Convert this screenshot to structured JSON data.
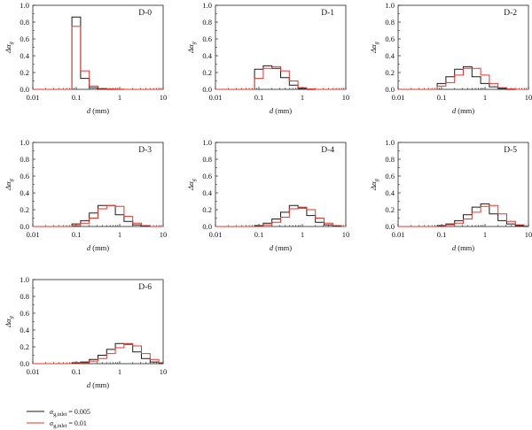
{
  "figure": {
    "xlabel_var": "d",
    "xlabel_unit": " (mm)",
    "ylabel_main": "Δα",
    "ylabel_sub": "g"
  },
  "legend": [
    {
      "symbol": "α",
      "sub": "g,inlet",
      "value": " = 0.005",
      "color": "#1a1a1a"
    },
    {
      "symbol": "α",
      "sub": "g,inlet",
      "value": " = 0.01",
      "color": "#e8352a"
    }
  ],
  "chart_data": [
    {
      "type": "line",
      "title": "D-0",
      "x_scale": "log",
      "xlim": [
        0.01,
        10
      ],
      "ylim": [
        0,
        1.0
      ],
      "x_ticks": [
        "0.01",
        "0.1",
        "1",
        "10"
      ],
      "y_ticks": [
        "0.0",
        "0.2",
        "0.4",
        "0.6",
        "0.8",
        "1.0"
      ],
      "bin_edges": [
        0.0088,
        0.0794,
        0.1259,
        0.1995,
        0.3162,
        0.5012,
        0.7943,
        1.2589,
        1.9953,
        3.1623,
        5.0119,
        7.9433,
        10.5
      ],
      "series": [
        {
          "name": "α g,inlet = 0.005",
          "color": "#1a1a1a",
          "values": [
            0.0,
            0.86,
            0.13,
            0.02,
            0.005,
            0.002,
            0.0,
            0.0,
            0.0,
            0.0,
            0.0,
            0.0
          ]
        },
        {
          "name": "α g,inlet = 0.01",
          "color": "#e8352a",
          "values": [
            0.0,
            0.75,
            0.22,
            0.04,
            0.01,
            0.005,
            0.002,
            0.0,
            0.0,
            0.0,
            0.0,
            0.0
          ]
        }
      ]
    },
    {
      "type": "line",
      "title": "D-1",
      "x_scale": "log",
      "xlim": [
        0.01,
        10
      ],
      "ylim": [
        0,
        1.0
      ],
      "x_ticks": [
        "0.01",
        "0.1",
        "1",
        "10"
      ],
      "y_ticks": [
        "0.0",
        "0.2",
        "0.4",
        "0.6",
        "0.8",
        "1.0"
      ],
      "bin_edges": [
        0.0088,
        0.0794,
        0.1259,
        0.1995,
        0.3162,
        0.5012,
        0.7943,
        1.2589,
        1.9953,
        3.1623,
        5.0119,
        7.9433,
        10.5
      ],
      "series": [
        {
          "name": "α g,inlet = 0.005",
          "color": "#1a1a1a",
          "values": [
            0.0,
            0.24,
            0.28,
            0.25,
            0.14,
            0.05,
            0.01,
            0.0,
            0.0,
            0.0,
            0.0,
            0.0
          ]
        },
        {
          "name": "α g,inlet = 0.01",
          "color": "#e8352a",
          "values": [
            0.0,
            0.13,
            0.25,
            0.27,
            0.22,
            0.1,
            0.02,
            0.005,
            0.0,
            0.0,
            0.0,
            0.0
          ]
        }
      ]
    },
    {
      "type": "line",
      "title": "D-2",
      "x_scale": "log",
      "xlim": [
        0.01,
        10
      ],
      "ylim": [
        0,
        1.0
      ],
      "x_ticks": [
        "0.01",
        "0.1",
        "1",
        "10"
      ],
      "y_ticks": [
        "0.0",
        "0.2",
        "0.4",
        "0.6",
        "0.8",
        "1.0"
      ],
      "bin_edges": [
        0.0088,
        0.0794,
        0.1259,
        0.1995,
        0.3162,
        0.5012,
        0.7943,
        1.2589,
        1.9953,
        3.1623,
        5.0119,
        7.9433,
        10.5
      ],
      "series": [
        {
          "name": "α g,inlet = 0.005",
          "color": "#1a1a1a",
          "values": [
            0.0,
            0.07,
            0.15,
            0.24,
            0.27,
            0.15,
            0.07,
            0.03,
            0.01,
            0.0,
            0.0,
            0.0
          ]
        },
        {
          "name": "α g,inlet = 0.01",
          "color": "#e8352a",
          "values": [
            0.0,
            0.04,
            0.08,
            0.17,
            0.25,
            0.25,
            0.17,
            0.07,
            0.02,
            0.005,
            0.0,
            0.0
          ]
        }
      ]
    },
    {
      "type": "line",
      "title": "D-3",
      "x_scale": "log",
      "xlim": [
        0.01,
        10
      ],
      "ylim": [
        0,
        1.0
      ],
      "x_ticks": [
        "0.01",
        "0.1",
        "1",
        "10"
      ],
      "y_ticks": [
        "0.0",
        "0.2",
        "0.4",
        "0.6",
        "0.8",
        "1.0"
      ],
      "bin_edges": [
        0.0088,
        0.0794,
        0.1259,
        0.1995,
        0.3162,
        0.5012,
        0.7943,
        1.2589,
        1.9953,
        3.1623,
        5.0119,
        7.9433,
        10.5
      ],
      "series": [
        {
          "name": "α g,inlet = 0.005",
          "color": "#1a1a1a",
          "values": [
            0.0,
            0.03,
            0.07,
            0.16,
            0.25,
            0.25,
            0.14,
            0.06,
            0.02,
            0.005,
            0.0,
            0.0
          ]
        },
        {
          "name": "α g,inlet = 0.01",
          "color": "#e8352a",
          "values": [
            0.0,
            0.01,
            0.04,
            0.1,
            0.21,
            0.25,
            0.24,
            0.12,
            0.04,
            0.01,
            0.0,
            0.0
          ]
        }
      ]
    },
    {
      "type": "line",
      "title": "D-4",
      "x_scale": "log",
      "xlim": [
        0.01,
        10
      ],
      "ylim": [
        0,
        1.0
      ],
      "x_ticks": [
        "0.01",
        "0.1",
        "1",
        "10"
      ],
      "y_ticks": [
        "0.0",
        "0.2",
        "0.4",
        "0.6",
        "0.8",
        "1.0"
      ],
      "bin_edges": [
        0.0088,
        0.0794,
        0.1259,
        0.1995,
        0.3162,
        0.5012,
        0.7943,
        1.2589,
        1.9953,
        3.1623,
        5.0119,
        7.9433,
        10.5
      ],
      "series": [
        {
          "name": "α g,inlet = 0.005",
          "color": "#1a1a1a",
          "values": [
            0.0,
            0.01,
            0.04,
            0.09,
            0.17,
            0.25,
            0.22,
            0.13,
            0.05,
            0.02,
            0.005,
            0.0
          ]
        },
        {
          "name": "α g,inlet = 0.01",
          "color": "#e8352a",
          "values": [
            0.0,
            0.0,
            0.02,
            0.05,
            0.11,
            0.21,
            0.23,
            0.2,
            0.1,
            0.04,
            0.01,
            0.0
          ]
        }
      ]
    },
    {
      "type": "line",
      "title": "D-5",
      "x_scale": "log",
      "xlim": [
        0.01,
        10
      ],
      "ylim": [
        0,
        1.0
      ],
      "x_ticks": [
        "0.01",
        "0.1",
        "1",
        "10"
      ],
      "y_ticks": [
        "0.0",
        "0.2",
        "0.4",
        "0.6",
        "0.8",
        "1.0"
      ],
      "bin_edges": [
        0.0088,
        0.0794,
        0.1259,
        0.1995,
        0.3162,
        0.5012,
        0.7943,
        1.2589,
        1.9953,
        3.1623,
        5.0119,
        7.9433,
        10.5
      ],
      "series": [
        {
          "name": "α g,inlet = 0.005",
          "color": "#1a1a1a",
          "values": [
            0.0,
            0.01,
            0.03,
            0.07,
            0.14,
            0.23,
            0.27,
            0.15,
            0.07,
            0.03,
            0.01,
            0.0
          ]
        },
        {
          "name": "α g,inlet = 0.01",
          "color": "#e8352a",
          "values": [
            0.0,
            0.0,
            0.02,
            0.04,
            0.09,
            0.17,
            0.24,
            0.25,
            0.15,
            0.06,
            0.02,
            0.005
          ]
        }
      ]
    },
    {
      "type": "line",
      "title": "D-6",
      "x_scale": "log",
      "xlim": [
        0.01,
        10
      ],
      "ylim": [
        0,
        1.0
      ],
      "x_ticks": [
        "0.01",
        "0.1",
        "1",
        "10"
      ],
      "y_ticks": [
        "0.0",
        "0.2",
        "0.4",
        "0.6",
        "0.8",
        "1.0"
      ],
      "bin_edges": [
        0.0088,
        0.0794,
        0.1259,
        0.1995,
        0.3162,
        0.5012,
        0.7943,
        1.2589,
        1.9953,
        3.1623,
        5.0119,
        7.9433,
        10.5
      ],
      "series": [
        {
          "name": "α g,inlet = 0.005",
          "color": "#1a1a1a",
          "values": [
            0.0,
            0.01,
            0.02,
            0.05,
            0.1,
            0.17,
            0.24,
            0.23,
            0.14,
            0.06,
            0.02,
            0.0
          ]
        },
        {
          "name": "α g,inlet = 0.01",
          "color": "#e8352a",
          "values": [
            0.0,
            0.0,
            0.01,
            0.03,
            0.06,
            0.12,
            0.19,
            0.24,
            0.21,
            0.12,
            0.05,
            0.01
          ]
        }
      ]
    }
  ]
}
